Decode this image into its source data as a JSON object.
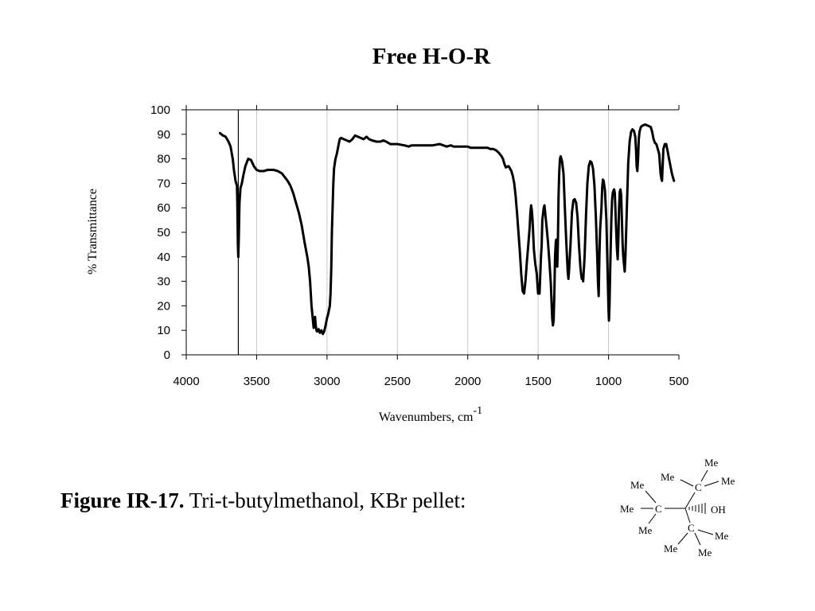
{
  "chart_data": {
    "type": "line",
    "title": "Free H-O-R",
    "xlabel": "Wavenumbers, cm",
    "xlabel_superscript": "-1",
    "ylabel": "% Transmittance",
    "xlim": [
      4000,
      500
    ],
    "ylim": [
      0,
      100
    ],
    "x_ticks": [
      "4000",
      "3500",
      "3000",
      "2500",
      "2000",
      "1500",
      "1000",
      "500"
    ],
    "y_ticks": [
      "100",
      "90",
      "80",
      "70",
      "60",
      "50",
      "40",
      "30",
      "20",
      "10",
      "0"
    ],
    "grid": "vertical",
    "marker_line_x": 3630,
    "series": [
      {
        "points": [
          [
            3760,
            90.5
          ],
          [
            3740,
            89.5
          ],
          [
            3720,
            89
          ],
          [
            3700,
            87
          ],
          [
            3685,
            85
          ],
          [
            3670,
            80
          ],
          [
            3660,
            75
          ],
          [
            3650,
            71
          ],
          [
            3645,
            70
          ],
          [
            3640,
            69
          ],
          [
            3637,
            62
          ],
          [
            3633,
            45
          ],
          [
            3630,
            40
          ],
          [
            3627,
            47
          ],
          [
            3622,
            62
          ],
          [
            3615,
            68
          ],
          [
            3605,
            70
          ],
          [
            3595,
            73
          ],
          [
            3580,
            77
          ],
          [
            3560,
            80
          ],
          [
            3540,
            79.5
          ],
          [
            3520,
            77
          ],
          [
            3500,
            75.5
          ],
          [
            3480,
            75
          ],
          [
            3450,
            75
          ],
          [
            3420,
            75.5
          ],
          [
            3400,
            75.5
          ],
          [
            3380,
            75.5
          ],
          [
            3350,
            75
          ],
          [
            3320,
            74
          ],
          [
            3300,
            72.5
          ],
          [
            3280,
            71
          ],
          [
            3260,
            69
          ],
          [
            3240,
            66
          ],
          [
            3220,
            62
          ],
          [
            3200,
            58
          ],
          [
            3180,
            53
          ],
          [
            3160,
            46
          ],
          [
            3140,
            40
          ],
          [
            3130,
            36
          ],
          [
            3120,
            30
          ],
          [
            3110,
            20
          ],
          [
            3100,
            14
          ],
          [
            3095,
            11
          ],
          [
            3090,
            13
          ],
          [
            3085,
            15.5
          ],
          [
            3080,
            12
          ],
          [
            3075,
            10
          ],
          [
            3070,
            9.5
          ],
          [
            3060,
            10.5
          ],
          [
            3050,
            9
          ],
          [
            3040,
            10
          ],
          [
            3030,
            8.5
          ],
          [
            3020,
            9.5
          ],
          [
            3010,
            12
          ],
          [
            3000,
            15
          ],
          [
            2990,
            17
          ],
          [
            2980,
            20
          ],
          [
            2975,
            25
          ],
          [
            2970,
            35
          ],
          [
            2965,
            50
          ],
          [
            2960,
            60
          ],
          [
            2955,
            70
          ],
          [
            2950,
            76
          ],
          [
            2940,
            80
          ],
          [
            2930,
            82
          ],
          [
            2920,
            85
          ],
          [
            2910,
            88
          ],
          [
            2900,
            88.5
          ],
          [
            2880,
            88
          ],
          [
            2860,
            87.5
          ],
          [
            2840,
            87
          ],
          [
            2820,
            88
          ],
          [
            2800,
            89.5
          ],
          [
            2780,
            89
          ],
          [
            2760,
            88.5
          ],
          [
            2740,
            88
          ],
          [
            2720,
            89
          ],
          [
            2700,
            88
          ],
          [
            2680,
            87.5
          ],
          [
            2650,
            87
          ],
          [
            2620,
            87
          ],
          [
            2600,
            87.5
          ],
          [
            2580,
            87
          ],
          [
            2550,
            86
          ],
          [
            2500,
            86
          ],
          [
            2450,
            85.5
          ],
          [
            2420,
            85
          ],
          [
            2400,
            85.5
          ],
          [
            2350,
            85.5
          ],
          [
            2300,
            85.5
          ],
          [
            2250,
            85.5
          ],
          [
            2200,
            86
          ],
          [
            2150,
            85
          ],
          [
            2120,
            85.5
          ],
          [
            2100,
            85
          ],
          [
            2050,
            85
          ],
          [
            2000,
            85
          ],
          [
            1980,
            84.5
          ],
          [
            1950,
            84.5
          ],
          [
            1920,
            84.5
          ],
          [
            1900,
            84.5
          ],
          [
            1880,
            84.5
          ],
          [
            1860,
            84.5
          ],
          [
            1840,
            84
          ],
          [
            1820,
            84
          ],
          [
            1800,
            83.5
          ],
          [
            1780,
            82.5
          ],
          [
            1760,
            81
          ],
          [
            1750,
            80
          ],
          [
            1740,
            78
          ],
          [
            1730,
            76.5
          ],
          [
            1710,
            77
          ],
          [
            1700,
            76
          ],
          [
            1690,
            75
          ],
          [
            1680,
            73
          ],
          [
            1670,
            70
          ],
          [
            1660,
            65
          ],
          [
            1650,
            58
          ],
          [
            1640,
            50
          ],
          [
            1630,
            42
          ],
          [
            1620,
            33
          ],
          [
            1610,
            26
          ],
          [
            1600,
            25
          ],
          [
            1590,
            30
          ],
          [
            1580,
            38
          ],
          [
            1570,
            45
          ],
          [
            1560,
            52
          ],
          [
            1555,
            58
          ],
          [
            1550,
            61
          ],
          [
            1545,
            59
          ],
          [
            1540,
            55
          ],
          [
            1530,
            43
          ],
          [
            1520,
            37
          ],
          [
            1510,
            33
          ],
          [
            1500,
            25
          ],
          [
            1490,
            25
          ],
          [
            1480,
            40
          ],
          [
            1475,
            45
          ],
          [
            1470,
            55
          ],
          [
            1460,
            60
          ],
          [
            1455,
            61
          ],
          [
            1450,
            58
          ],
          [
            1440,
            52
          ],
          [
            1430,
            46
          ],
          [
            1420,
            38
          ],
          [
            1410,
            29
          ],
          [
            1400,
            15
          ],
          [
            1395,
            12
          ],
          [
            1390,
            14
          ],
          [
            1385,
            25
          ],
          [
            1380,
            40
          ],
          [
            1375,
            46
          ],
          [
            1372,
            47
          ],
          [
            1368,
            40
          ],
          [
            1364,
            36
          ],
          [
            1360,
            45
          ],
          [
            1355,
            65
          ],
          [
            1350,
            75
          ],
          [
            1345,
            80
          ],
          [
            1340,
            81
          ],
          [
            1330,
            79
          ],
          [
            1320,
            74
          ],
          [
            1310,
            60
          ],
          [
            1300,
            46
          ],
          [
            1290,
            34
          ],
          [
            1285,
            31
          ],
          [
            1280,
            35
          ],
          [
            1270,
            45
          ],
          [
            1260,
            58
          ],
          [
            1250,
            63
          ],
          [
            1240,
            63.5
          ],
          [
            1230,
            62
          ],
          [
            1220,
            56
          ],
          [
            1210,
            45
          ],
          [
            1200,
            36
          ],
          [
            1195,
            33
          ],
          [
            1190,
            31
          ],
          [
            1185,
            32
          ],
          [
            1180,
            30
          ],
          [
            1170,
            40
          ],
          [
            1160,
            57
          ],
          [
            1150,
            70
          ],
          [
            1140,
            77
          ],
          [
            1130,
            79
          ],
          [
            1120,
            78.5
          ],
          [
            1110,
            76
          ],
          [
            1100,
            69
          ],
          [
            1090,
            56
          ],
          [
            1080,
            40
          ],
          [
            1075,
            30
          ],
          [
            1070,
            24
          ],
          [
            1065,
            40
          ],
          [
            1060,
            51
          ],
          [
            1050,
            60
          ],
          [
            1045,
            68
          ],
          [
            1040,
            71.5
          ],
          [
            1035,
            71
          ],
          [
            1025,
            67
          ],
          [
            1015,
            55
          ],
          [
            1005,
            30
          ],
          [
            1000,
            18
          ],
          [
            997,
            14
          ],
          [
            993,
            20
          ],
          [
            988,
            35
          ],
          [
            980,
            55
          ],
          [
            975,
            63
          ],
          [
            970,
            66
          ],
          [
            965,
            67
          ],
          [
            960,
            67.5
          ],
          [
            955,
            66
          ],
          [
            950,
            58
          ],
          [
            945,
            50
          ],
          [
            940,
            43
          ],
          [
            935,
            39
          ],
          [
            930,
            48
          ],
          [
            925,
            60
          ],
          [
            920,
            66.5
          ],
          [
            915,
            67.5
          ],
          [
            910,
            65
          ],
          [
            905,
            55
          ],
          [
            900,
            45
          ],
          [
            895,
            40
          ],
          [
            890,
            37
          ],
          [
            885,
            34
          ],
          [
            880,
            40
          ],
          [
            870,
            60
          ],
          [
            860,
            78
          ],
          [
            850,
            87
          ],
          [
            840,
            91
          ],
          [
            830,
            92
          ],
          [
            820,
            91.5
          ],
          [
            810,
            89
          ],
          [
            805,
            84
          ],
          [
            800,
            77
          ],
          [
            795,
            75
          ],
          [
            790,
            80
          ],
          [
            785,
            88
          ],
          [
            780,
            91
          ],
          [
            770,
            93
          ],
          [
            760,
            93.5
          ],
          [
            740,
            94
          ],
          [
            720,
            93.5
          ],
          [
            700,
            93
          ],
          [
            690,
            91
          ],
          [
            680,
            88
          ],
          [
            670,
            86.5
          ],
          [
            660,
            86
          ],
          [
            650,
            84
          ],
          [
            640,
            82
          ],
          [
            635,
            78
          ],
          [
            630,
            74
          ],
          [
            625,
            72
          ],
          [
            620,
            71
          ],
          [
            615,
            78
          ],
          [
            610,
            84
          ],
          [
            600,
            86
          ],
          [
            590,
            86
          ],
          [
            580,
            83
          ],
          [
            570,
            80
          ],
          [
            560,
            77
          ],
          [
            550,
            74
          ],
          [
            540,
            72
          ],
          [
            535,
            71
          ]
        ]
      }
    ]
  },
  "caption": {
    "label": "Figure IR-17.",
    "text": " Tri-t-butylmethanol, KBr pellet:"
  },
  "structure": {
    "me": "Me",
    "c": "C",
    "oh": "OH"
  }
}
